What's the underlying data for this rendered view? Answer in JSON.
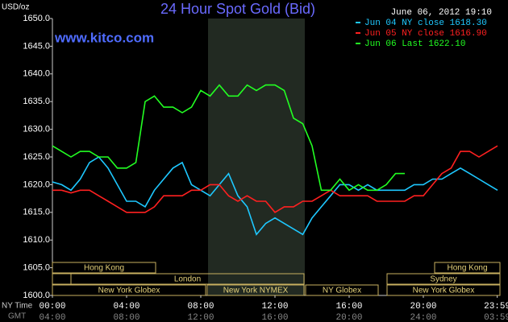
{
  "chart_data": {
    "type": "line",
    "title": "24 Hour Spot Gold (Bid)",
    "y_unit": "USD/oz",
    "timestamp": "June 06, 2012 19:10",
    "source": "www.kitco.com",
    "x_axis_label": "NY Time",
    "x2_axis_label": "GMT",
    "x": [
      0,
      0.5,
      1,
      1.5,
      2,
      2.5,
      3,
      3.5,
      4,
      4.5,
      5,
      5.5,
      6,
      6.5,
      7,
      7.5,
      8,
      8.5,
      9,
      9.5,
      10,
      10.5,
      11,
      11.5,
      12,
      12.5,
      13,
      13.5,
      14,
      14.5,
      15,
      15.5,
      16,
      16.5,
      17,
      17.5,
      18,
      18.5,
      19,
      19.5,
      20,
      20.5,
      21,
      21.5,
      22,
      22.5,
      23,
      23.5,
      24
    ],
    "xlim": [
      0,
      24
    ],
    "xticks": [
      {
        "value": 0,
        "label": "00:00"
      },
      {
        "value": 4,
        "label": "04:00"
      },
      {
        "value": 8,
        "label": "08:00"
      },
      {
        "value": 12,
        "label": "12:00"
      },
      {
        "value": 16,
        "label": "16:00"
      },
      {
        "value": 20,
        "label": "20:00"
      },
      {
        "value": 23.983,
        "label": "23:59"
      }
    ],
    "x2ticks": [
      "04:00",
      "08:00",
      "12:00",
      "16:00",
      "20:00",
      "24:00",
      "03:59"
    ],
    "ylim": [
      1600,
      1650
    ],
    "yticks": [
      {
        "value": 1600,
        "label": "1600.0"
      },
      {
        "value": 1605,
        "label": "1605.0"
      },
      {
        "value": 1610,
        "label": "1610.0"
      },
      {
        "value": 1615,
        "label": "1615.0"
      },
      {
        "value": 1620,
        "label": "1620.0"
      },
      {
        "value": 1625,
        "label": "1625.0"
      },
      {
        "value": 1630,
        "label": "1630.0"
      },
      {
        "value": 1635,
        "label": "1635.0"
      },
      {
        "value": 1640,
        "label": "1640.0"
      },
      {
        "value": 1645,
        "label": "1645.0"
      },
      {
        "value": 1650,
        "label": "1650.0"
      }
    ],
    "series": [
      {
        "name": "Jun 04 NY close 1618.30",
        "color": "#1ec8ff",
        "values": [
          1620.5,
          1620,
          1619,
          1621,
          1624,
          1625,
          1623,
          1620,
          1617,
          1617,
          1616,
          1619,
          1621,
          1623,
          1624,
          1620,
          1619,
          1618,
          1620,
          1622,
          1618,
          1616,
          1611,
          1613,
          1614,
          1613,
          1612,
          1611,
          1614,
          1616,
          1618,
          1620,
          1620,
          1619,
          1620,
          1619,
          1619,
          1619,
          1619,
          1620,
          1620,
          1621,
          1621,
          1622,
          1623,
          1622,
          1621,
          1620,
          1619
        ]
      },
      {
        "name": "Jun 05 NY close 1616.90",
        "color": "#ff2020",
        "values": [
          1619,
          1619,
          1618.5,
          1619,
          1619,
          1618,
          1617,
          1616,
          1615,
          1615,
          1615,
          1616,
          1618,
          1618,
          1618,
          1619,
          1619,
          1620,
          1620,
          1618,
          1617,
          1618,
          1617,
          1617,
          1615,
          1616,
          1616,
          1617,
          1617,
          1618,
          1619,
          1618,
          1618,
          1618,
          1618,
          1617,
          1617,
          1617,
          1617,
          1618,
          1618,
          1620,
          1622,
          1623,
          1626,
          1626,
          1625,
          1626,
          1627
        ]
      },
      {
        "name": "Jun 06 Last 1622.10",
        "color": "#22ff22",
        "values": [
          1627,
          1626,
          1625,
          1626,
          1626,
          1625,
          1625,
          1623,
          1623,
          1624,
          1635,
          1636,
          1634,
          1634,
          1633,
          1634,
          1637,
          1636,
          1638,
          1636,
          1636,
          1638,
          1637,
          1638,
          1638,
          1637,
          1632,
          1631,
          1627,
          1619,
          1619,
          1621,
          1619,
          1620,
          1619,
          1619,
          1620,
          1622,
          1622,
          null,
          null,
          null,
          null,
          null,
          null,
          null,
          null,
          null,
          null
        ]
      }
    ],
    "sessions": [
      {
        "label": "Hong Kong"
      },
      {
        "label": "Hong Kong"
      },
      {
        "label": "London"
      },
      {
        "label": "Sydney"
      },
      {
        "label": "New York Globex"
      },
      {
        "label": "New York NYMEX"
      },
      {
        "label": "NY Globex"
      },
      {
        "label": "New York Globex"
      }
    ]
  }
}
